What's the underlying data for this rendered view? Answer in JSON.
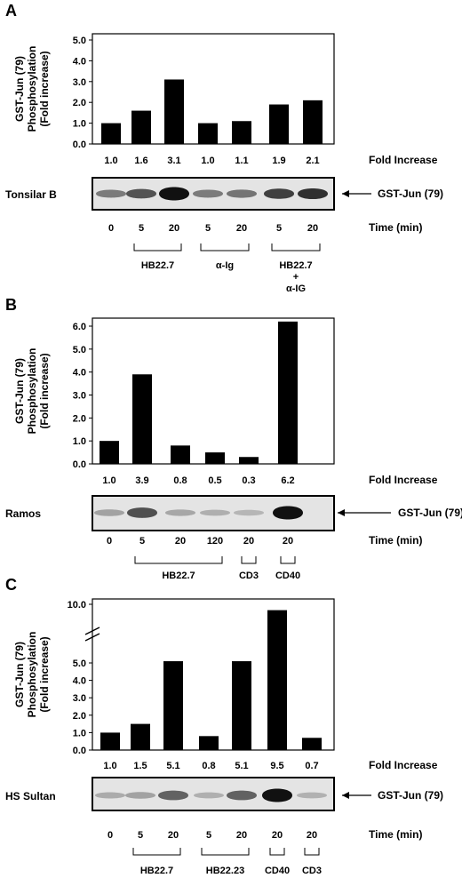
{
  "chart_data": [
    {
      "type": "bar",
      "panel_label": "A",
      "ylabel_lines": [
        "GST-Jun (79)",
        "Phosphosylation",
        "(Fold increase)"
      ],
      "ytick_labels": [
        "0.0",
        "1.0",
        "2.0",
        "3.0",
        "4.0",
        "5.0"
      ],
      "ylim": [
        0,
        5.5
      ],
      "values": [
        1.0,
        1.6,
        3.1,
        1.0,
        1.1,
        1.9,
        2.1
      ],
      "fold_labels": [
        "1.0",
        "1.6",
        "3.1",
        "1.0",
        "1.1",
        "1.9",
        "2.1"
      ],
      "fold_title": "Fold Increase",
      "blot_label": "Tonsilar B",
      "arrow_label": "GST-Jun (79)",
      "time_labels": [
        "0",
        "5",
        "20",
        "5",
        "20",
        "5",
        "20"
      ],
      "time_title": "Time (min)",
      "groups": [
        {
          "label_lines": [
            "HB22.7"
          ],
          "bars": [
            1,
            2
          ]
        },
        {
          "label_lines": [
            "α-Ig"
          ],
          "bars": [
            3,
            4
          ]
        },
        {
          "label_lines": [
            "HB22.7",
            "+",
            "α-IG"
          ],
          "bars": [
            5,
            6
          ]
        }
      ]
    },
    {
      "type": "bar",
      "panel_label": "B",
      "ylabel_lines": [
        "GST-Jun (79)",
        "Phosphosylation",
        "(Fold increase)"
      ],
      "ytick_labels": [
        "0.0",
        "1.0",
        "2.0",
        "3.0",
        "4.0",
        "5.0",
        "6.0"
      ],
      "ylim": [
        0,
        6.3
      ],
      "values": [
        1.0,
        3.9,
        0.8,
        0.5,
        0.3,
        6.2
      ],
      "fold_labels": [
        "1.0",
        "3.9",
        "0.8",
        "0.5",
        "0.3",
        "6.2"
      ],
      "fold_title": "Fold Increase",
      "blot_label": "Ramos",
      "arrow_label": "GST-Jun (79)",
      "time_labels": [
        "0",
        "5",
        "20",
        "120",
        "20",
        "20"
      ],
      "time_title": "Time (min)",
      "groups": [
        {
          "label_lines": [
            "HB22.7"
          ],
          "bars": [
            1,
            3
          ]
        },
        {
          "label_lines": [
            "CD3"
          ],
          "bars": [
            4,
            4
          ]
        },
        {
          "label_lines": [
            "CD40"
          ],
          "bars": [
            5,
            5
          ]
        }
      ]
    },
    {
      "type": "bar",
      "panel_label": "C",
      "ylabel_lines": [
        "GST-Jun (79)",
        "Phosphosylation",
        "(Fold increase)"
      ],
      "ytick_labels": [
        "0.0",
        "1.0",
        "2.0",
        "3.0",
        "4.0",
        "5.0",
        "10.0"
      ],
      "ylim": [
        0,
        10
      ],
      "axis_break": true,
      "values": [
        1.0,
        1.5,
        5.1,
        0.8,
        5.1,
        9.5,
        0.7
      ],
      "fold_labels": [
        "1.0",
        "1.5",
        "5.1",
        "0.8",
        "5.1",
        "9.5",
        "0.7"
      ],
      "fold_title": "Fold Increase",
      "blot_label": "HS Sultan",
      "arrow_label": "GST-Jun (79)",
      "time_labels": [
        "0",
        "5",
        "20",
        "5",
        "20",
        "20",
        "20"
      ],
      "time_title": "Time (min)",
      "groups": [
        {
          "label_lines": [
            "HB22.7"
          ],
          "bars": [
            1,
            2
          ]
        },
        {
          "label_lines": [
            "HB22.23"
          ],
          "bars": [
            3,
            4
          ]
        },
        {
          "label_lines": [
            "CD40"
          ],
          "bars": [
            5,
            5
          ]
        },
        {
          "label_lines": [
            "CD3"
          ],
          "bars": [
            6,
            6
          ]
        }
      ]
    }
  ]
}
